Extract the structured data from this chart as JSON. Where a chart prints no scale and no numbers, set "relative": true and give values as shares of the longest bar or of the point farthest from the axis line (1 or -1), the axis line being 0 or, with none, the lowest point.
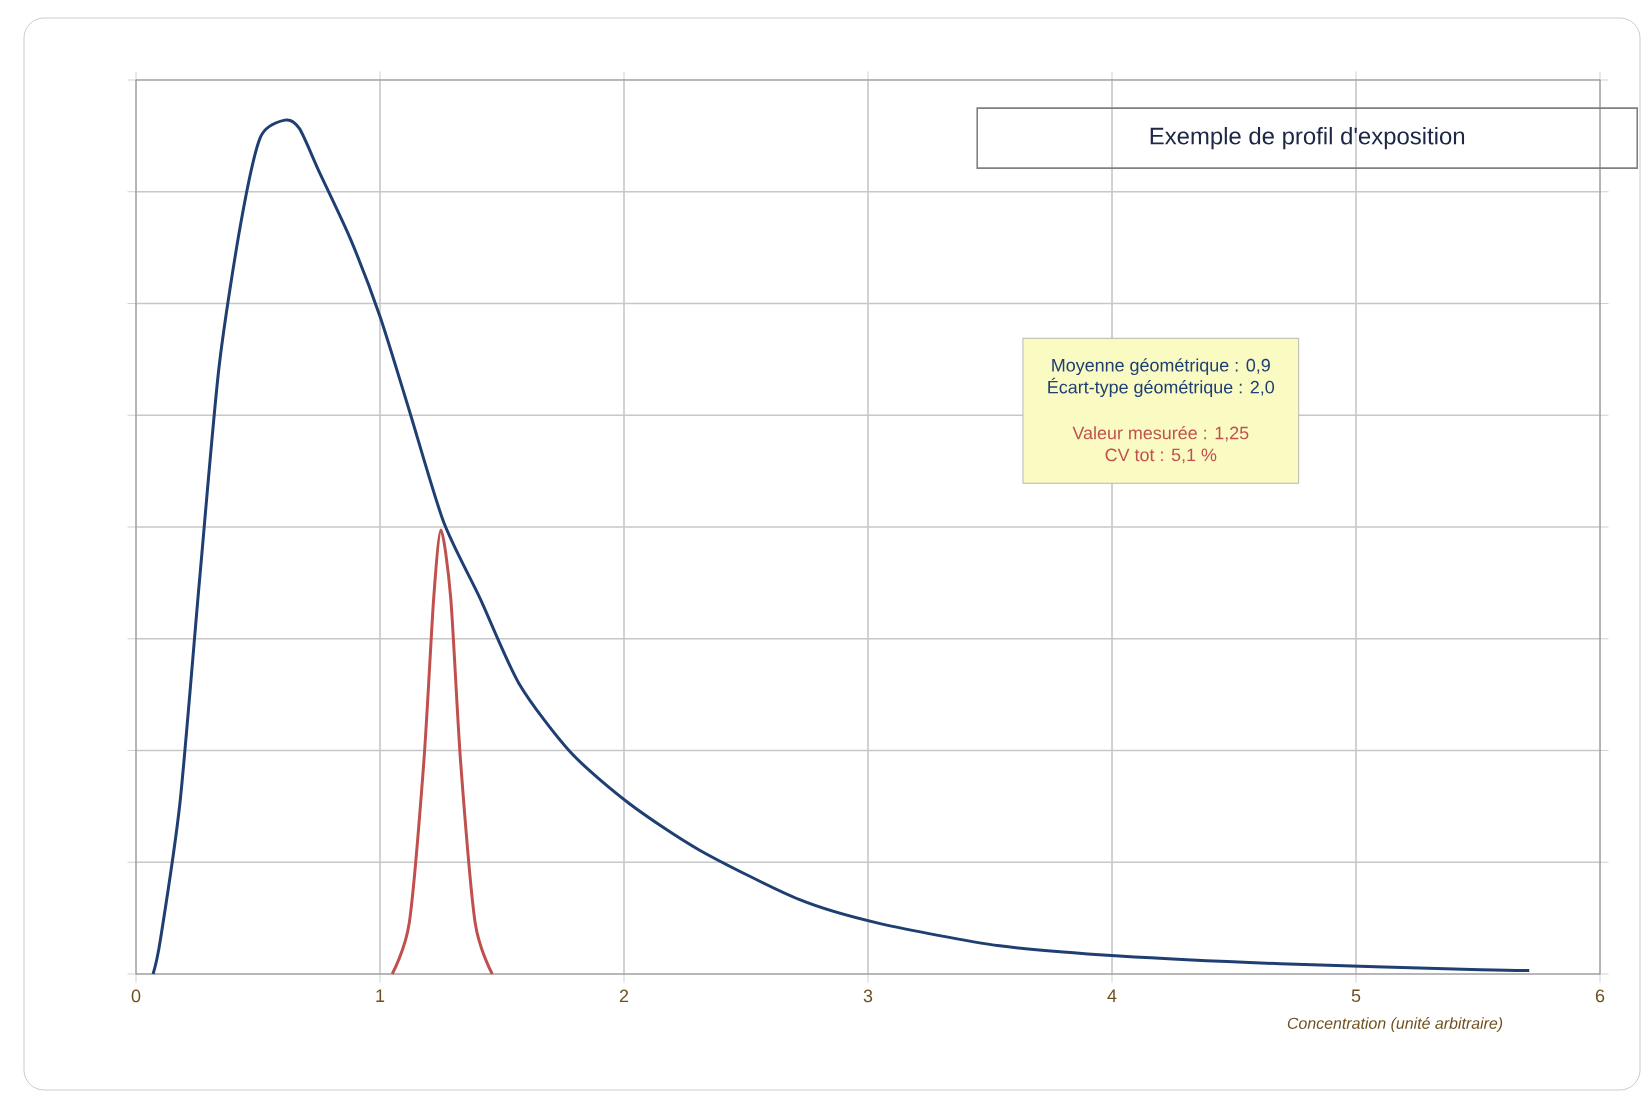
{
  "chart_data": {
    "type": "line",
    "title": "Exemple de profil d'exposition",
    "xlabel": "Concentration  (unité arbitraire)",
    "relative": true,
    "xlim": [
      0,
      6
    ],
    "xticks": [
      0,
      1,
      2,
      3,
      4,
      5,
      6
    ],
    "grid": true,
    "marker": "none",
    "line_style": "solid",
    "annotations": [
      "Moyenne géométrique : 0,9",
      "Écart-type géométrique : 2,0",
      "Valeur mesurée : 1,25",
      "CV tot : 5,1 %"
    ],
    "series": [
      {
        "color": "#1f3f73",
        "x": [
          0.07,
          0.1,
          0.18,
          0.26,
          0.34,
          0.43,
          0.51,
          0.61,
          0.67,
          0.75,
          0.88,
          1.0,
          1.12,
          1.26,
          1.41,
          1.57,
          1.78,
          2.02,
          2.31,
          2.72,
          3.05,
          3.54,
          4.03,
          4.69,
          5.51,
          5.71
        ],
        "values": [
          0,
          0.04,
          0.2,
          0.46,
          0.71,
          0.88,
          0.98,
          1.0,
          0.99,
          0.94,
          0.86,
          0.77,
          0.66,
          0.53,
          0.44,
          0.34,
          0.26,
          0.2,
          0.145,
          0.087,
          0.059,
          0.033,
          0.021,
          0.012,
          0.005,
          0.004
        ]
      },
      {
        "color": "#c0504d",
        "x": [
          1.05,
          1.12,
          1.18,
          1.22,
          1.25,
          1.29,
          1.33,
          1.39,
          1.46
        ],
        "values": [
          0,
          0.06,
          0.25,
          0.44,
          0.52,
          0.44,
          0.25,
          0.06,
          0
        ]
      }
    ]
  }
}
